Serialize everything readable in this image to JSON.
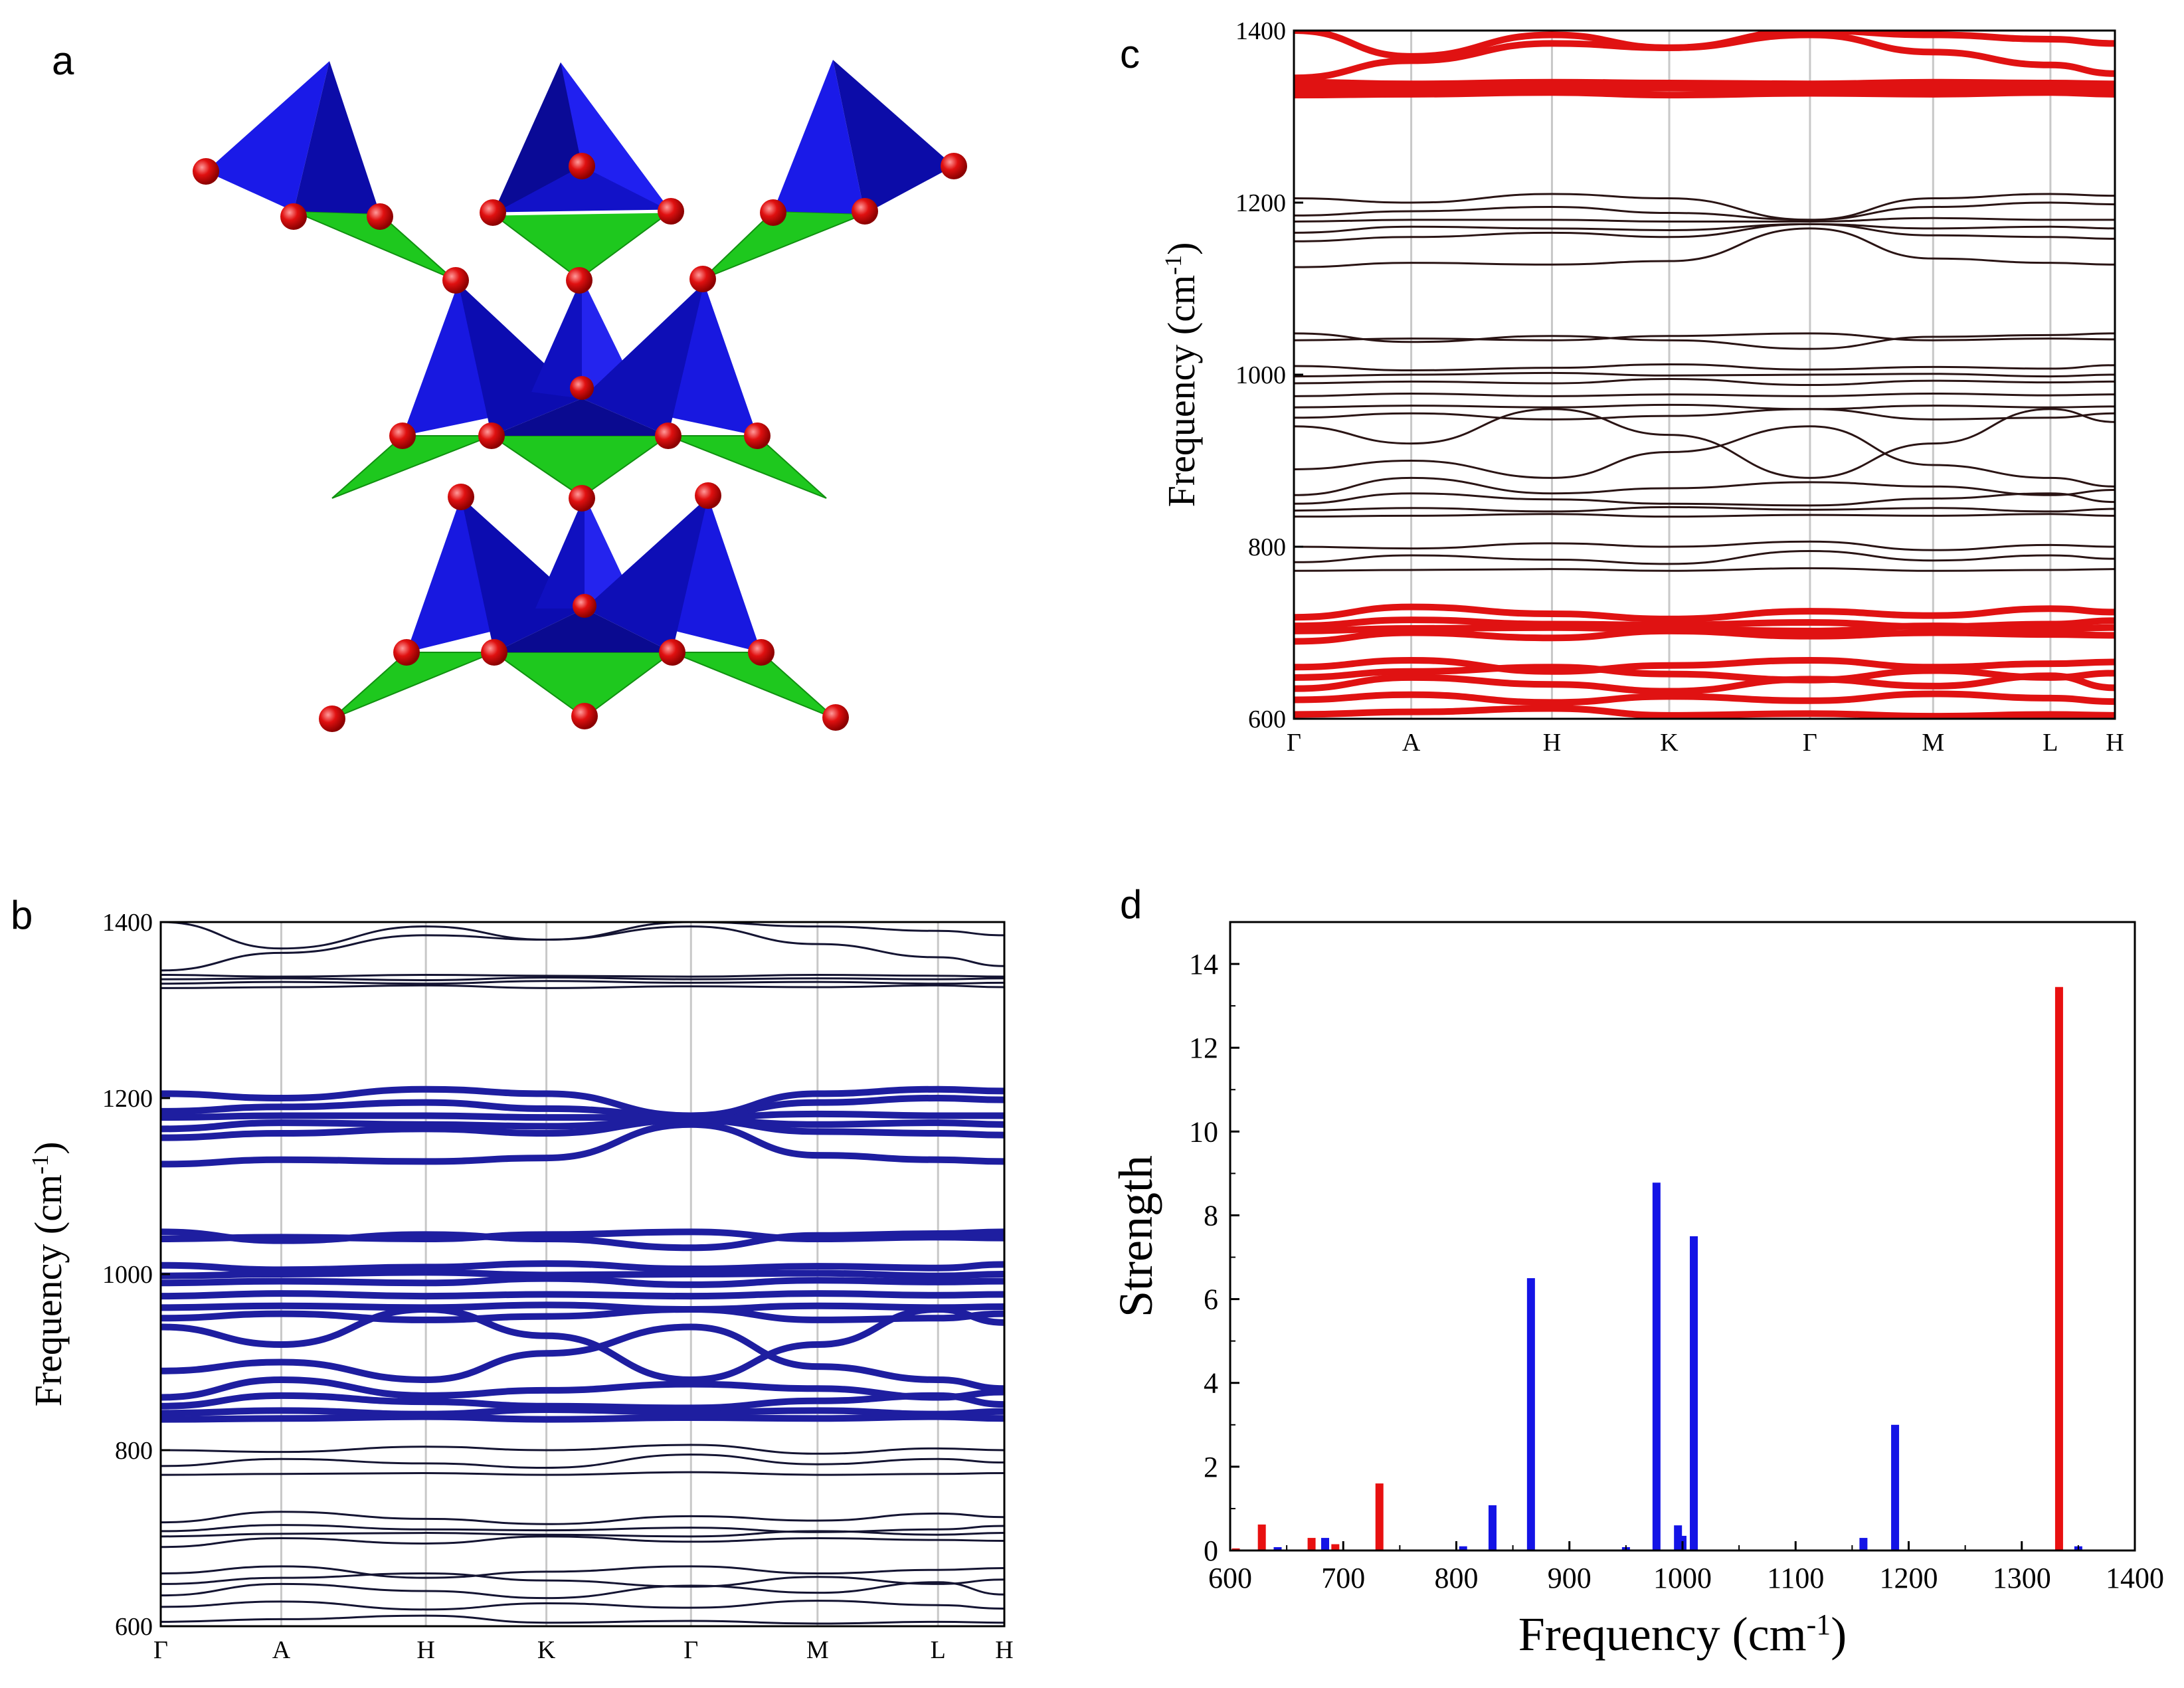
{
  "figure": {
    "panel_labels": [
      "a",
      "b",
      "c",
      "d"
    ]
  },
  "colors": {
    "tetra_blue": "#1414e6",
    "tetra_dark": "#0a0a9a",
    "green": "#1ec81e",
    "green_dark": "#109010",
    "atom": "#e01010",
    "band_blue": "#1e1ea0",
    "band_red": "#e01212",
    "band_dark": "#2a1414",
    "bar_red": "#e81010",
    "bar_blue": "#1414e6",
    "gridline": "#c8c8c8"
  },
  "chart_data": [
    {
      "panel": "b",
      "type": "line",
      "ylabel": "Frequency (cm",
      "ylabel_sup": "-1",
      "ylabel_close": ")",
      "ylim": [
        600,
        1400
      ],
      "yticks": [
        600,
        800,
        1000,
        1200,
        1400
      ],
      "kpoints": [
        "Γ",
        "A",
        "H",
        "K",
        "Γ",
        "M",
        "L",
        "H"
      ],
      "kpos": [
        0,
        1,
        2.2,
        3.2,
        4.4,
        5.45,
        6.45,
        7
      ],
      "highlight": "blue",
      "highlight_ranges": [
        [
          825,
          1215
        ]
      ],
      "bands": [
        [
          605,
          608,
          612,
          604,
          606,
          603,
          605,
          604
        ],
        [
          622,
          628,
          619,
          626,
          621,
          629,
          624,
          620
        ],
        [
          635,
          648,
          640,
          632,
          646,
          638,
          650,
          636
        ],
        [
          648,
          655,
          660,
          652,
          645,
          656,
          648,
          653
        ],
        [
          660,
          668,
          655,
          662,
          668,
          660,
          664,
          666
        ],
        [
          690,
          700,
          694,
          702,
          696,
          700,
          698,
          697
        ],
        [
          702,
          705,
          706,
          704,
          702,
          708,
          704,
          706
        ],
        [
          708,
          715,
          710,
          709,
          712,
          707,
          710,
          714
        ],
        [
          718,
          730,
          722,
          716,
          725,
          720,
          728,
          724
        ],
        [
          772,
          773,
          774,
          772,
          775,
          772,
          773,
          774
        ],
        [
          782,
          790,
          785,
          780,
          795,
          784,
          790,
          786
        ],
        [
          800,
          798,
          804,
          800,
          806,
          796,
          802,
          800
        ],
        [
          835,
          836,
          838,
          835,
          837,
          836,
          838,
          836
        ],
        [
          842,
          845,
          841,
          846,
          843,
          845,
          841,
          844
        ],
        [
          850,
          862,
          855,
          850,
          848,
          856,
          862,
          852
        ],
        [
          860,
          880,
          862,
          868,
          875,
          870,
          860,
          866
        ],
        [
          890,
          900,
          880,
          910,
          940,
          895,
          880,
          870
        ],
        [
          940,
          920,
          960,
          930,
          880,
          920,
          960,
          945
        ],
        [
          950,
          955,
          948,
          952,
          960,
          948,
          950,
          955
        ],
        [
          962,
          964,
          962,
          965,
          960,
          964,
          962,
          963
        ],
        [
          975,
          978,
          975,
          977,
          975,
          978,
          976,
          977
        ],
        [
          990,
          992,
          990,
          995,
          988,
          993,
          991,
          992
        ],
        [
          998,
          1000,
          1002,
          999,
          1000,
          1001,
          998,
          1000
        ],
        [
          1010,
          1005,
          1008,
          1012,
          1006,
          1009,
          1007,
          1011
        ],
        [
          1040,
          1042,
          1040,
          1045,
          1048,
          1040,
          1042,
          1041
        ],
        [
          1048,
          1038,
          1045,
          1040,
          1030,
          1044,
          1046,
          1048
        ],
        [
          1125,
          1130,
          1128,
          1132,
          1170,
          1135,
          1130,
          1128
        ],
        [
          1155,
          1160,
          1165,
          1160,
          1175,
          1162,
          1160,
          1158
        ],
        [
          1165,
          1172,
          1170,
          1168,
          1175,
          1170,
          1172,
          1170
        ],
        [
          1178,
          1180,
          1180,
          1178,
          1178,
          1182,
          1180,
          1180
        ],
        [
          1185,
          1190,
          1195,
          1188,
          1180,
          1195,
          1200,
          1198
        ],
        [
          1205,
          1200,
          1210,
          1205,
          1180,
          1205,
          1210,
          1208
        ],
        [
          1325,
          1326,
          1328,
          1325,
          1327,
          1326,
          1328,
          1326
        ],
        [
          1330,
          1332,
          1330,
          1333,
          1331,
          1332,
          1330,
          1331
        ],
        [
          1335,
          1336,
          1334,
          1337,
          1335,
          1336,
          1335,
          1336
        ],
        [
          1340,
          1338,
          1340,
          1339,
          1338,
          1340,
          1339,
          1338
        ],
        [
          1345,
          1365,
          1385,
          1380,
          1395,
          1375,
          1360,
          1350
        ],
        [
          1400,
          1370,
          1395,
          1380,
          1400,
          1395,
          1390,
          1385
        ]
      ]
    },
    {
      "panel": "c",
      "type": "line",
      "ylabel": "Frequency (cm",
      "ylabel_sup": "-1",
      "ylabel_close": ")",
      "ylim": [
        600,
        1400
      ],
      "yticks": [
        600,
        800,
        1000,
        1200,
        1400
      ],
      "kpoints": [
        "Γ",
        "A",
        "H",
        "K",
        "Γ",
        "M",
        "L",
        "H"
      ],
      "kpos": [
        0,
        1,
        2.2,
        3.2,
        4.4,
        5.45,
        6.45,
        7
      ],
      "highlight": "red",
      "highlight_ranges": [
        [
          600,
          730
        ],
        [
          1320,
          1400
        ]
      ],
      "bands": [
        [
          605,
          608,
          612,
          604,
          606,
          603,
          605,
          604
        ],
        [
          622,
          628,
          619,
          626,
          621,
          629,
          624,
          620
        ],
        [
          635,
          648,
          640,
          632,
          646,
          638,
          650,
          636
        ],
        [
          648,
          655,
          660,
          652,
          645,
          656,
          648,
          653
        ],
        [
          660,
          668,
          655,
          662,
          668,
          660,
          664,
          666
        ],
        [
          690,
          700,
          694,
          702,
          696,
          700,
          698,
          697
        ],
        [
          702,
          705,
          706,
          704,
          702,
          708,
          704,
          706
        ],
        [
          708,
          715,
          710,
          709,
          712,
          707,
          710,
          714
        ],
        [
          718,
          730,
          722,
          716,
          725,
          720,
          728,
          724
        ],
        [
          772,
          773,
          774,
          772,
          775,
          772,
          773,
          774
        ],
        [
          782,
          790,
          785,
          780,
          795,
          784,
          790,
          786
        ],
        [
          800,
          798,
          804,
          800,
          806,
          796,
          802,
          800
        ],
        [
          835,
          836,
          838,
          835,
          837,
          836,
          838,
          836
        ],
        [
          842,
          845,
          841,
          846,
          843,
          845,
          841,
          844
        ],
        [
          850,
          862,
          855,
          850,
          848,
          856,
          862,
          852
        ],
        [
          860,
          880,
          862,
          868,
          875,
          870,
          860,
          866
        ],
        [
          890,
          900,
          880,
          910,
          940,
          895,
          880,
          870
        ],
        [
          940,
          920,
          960,
          930,
          880,
          920,
          960,
          945
        ],
        [
          950,
          955,
          948,
          952,
          960,
          948,
          950,
          955
        ],
        [
          962,
          964,
          962,
          965,
          960,
          964,
          962,
          963
        ],
        [
          975,
          978,
          975,
          977,
          975,
          978,
          976,
          977
        ],
        [
          990,
          992,
          990,
          995,
          988,
          993,
          991,
          992
        ],
        [
          998,
          1000,
          1002,
          999,
          1000,
          1001,
          998,
          1000
        ],
        [
          1010,
          1005,
          1008,
          1012,
          1006,
          1009,
          1007,
          1011
        ],
        [
          1040,
          1042,
          1040,
          1045,
          1048,
          1040,
          1042,
          1041
        ],
        [
          1048,
          1038,
          1045,
          1040,
          1030,
          1044,
          1046,
          1048
        ],
        [
          1125,
          1130,
          1128,
          1132,
          1170,
          1135,
          1130,
          1128
        ],
        [
          1155,
          1160,
          1165,
          1160,
          1175,
          1162,
          1160,
          1158
        ],
        [
          1165,
          1172,
          1170,
          1168,
          1175,
          1170,
          1172,
          1170
        ],
        [
          1178,
          1180,
          1180,
          1178,
          1178,
          1182,
          1180,
          1180
        ],
        [
          1185,
          1190,
          1195,
          1188,
          1180,
          1195,
          1200,
          1198
        ],
        [
          1205,
          1200,
          1210,
          1205,
          1180,
          1205,
          1210,
          1208
        ],
        [
          1325,
          1326,
          1328,
          1325,
          1327,
          1326,
          1328,
          1326
        ],
        [
          1330,
          1332,
          1330,
          1333,
          1331,
          1332,
          1330,
          1331
        ],
        [
          1335,
          1336,
          1334,
          1337,
          1335,
          1336,
          1335,
          1336
        ],
        [
          1340,
          1338,
          1340,
          1339,
          1338,
          1340,
          1339,
          1338
        ],
        [
          1345,
          1365,
          1385,
          1380,
          1395,
          1375,
          1360,
          1350
        ],
        [
          1400,
          1370,
          1395,
          1380,
          1400,
          1395,
          1390,
          1385
        ]
      ]
    },
    {
      "panel": "d",
      "type": "bar",
      "xlabel": "Frequency (cm",
      "xlabel_sup": "-1",
      "xlabel_close": ")",
      "ylabel": "Strength",
      "xlim": [
        600,
        1400
      ],
      "ylim": [
        0,
        15
      ],
      "xticks": [
        600,
        700,
        800,
        900,
        1000,
        1100,
        1200,
        1300,
        1400
      ],
      "yticks": [
        0,
        2,
        4,
        6,
        8,
        10,
        12,
        14
      ],
      "series": [
        {
          "name": "red",
          "color": "#e81010",
          "x": [
            605,
            628,
            672,
            693,
            732,
            1333
          ],
          "values": [
            0.05,
            0.62,
            0.3,
            0.15,
            1.6,
            13.45
          ]
        },
        {
          "name": "blue",
          "color": "#1414e6",
          "x": [
            642,
            684,
            806,
            832,
            866,
            950,
            977,
            996,
            1000,
            1010,
            1160,
            1188,
            1350
          ],
          "values": [
            0.08,
            0.3,
            0.1,
            1.08,
            6.5,
            0.08,
            8.78,
            0.6,
            0.35,
            7.5,
            0.3,
            3.0,
            0.1
          ]
        }
      ]
    }
  ]
}
